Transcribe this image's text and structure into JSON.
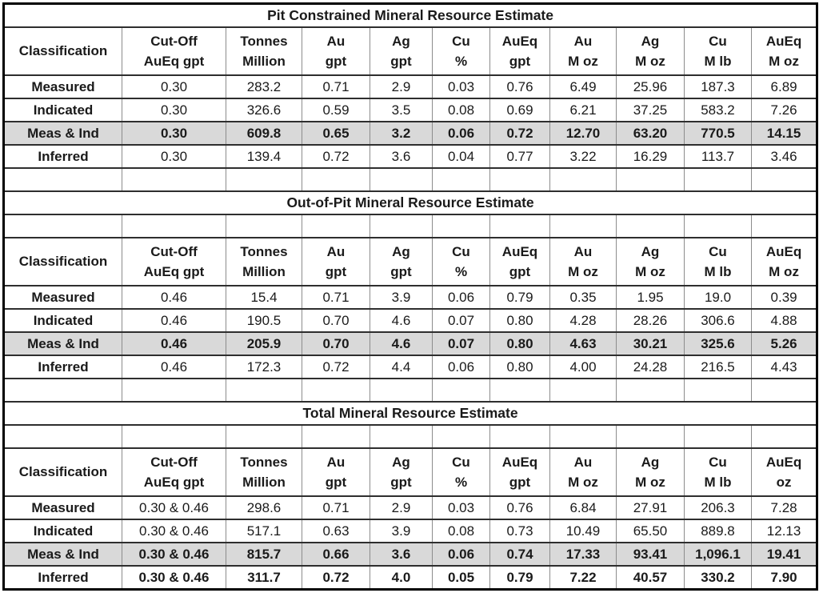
{
  "document": {
    "background": "#ffffff",
    "text_color": "#1a1a1a",
    "shaded_row_color": "#d9d9d9",
    "grid_vertical_color": "#8c8c8c",
    "grid_horizontal_color": "#2e2e2e",
    "outer_border_color": "#000000"
  },
  "tables": [
    {
      "title": "Pit Constrained Mineral Resource Estimate",
      "empty_row_after_title": false,
      "empty_row_after": true,
      "header": {
        "classification_label": "Classification",
        "columns": [
          {
            "line1": "Cut-Off",
            "line2": "AuEq gpt"
          },
          {
            "line1": "Tonnes",
            "line2": "Million"
          },
          {
            "line1": "Au",
            "line2": "gpt"
          },
          {
            "line1": "Ag",
            "line2": "gpt"
          },
          {
            "line1": "Cu",
            "line2": "%"
          },
          {
            "line1": "AuEq",
            "line2": "gpt"
          },
          {
            "line1": "Au",
            "line2": "M oz"
          },
          {
            "line1": "Ag",
            "line2": "M oz"
          },
          {
            "line1": "Cu",
            "line2": "M lb"
          },
          {
            "line1": "AuEq",
            "line2": "M oz"
          }
        ]
      },
      "rows": [
        {
          "label": "Measured",
          "values": [
            "0.30",
            "283.2",
            "0.71",
            "2.9",
            "0.03",
            "0.76",
            "6.49",
            "25.96",
            "187.3",
            "6.89"
          ],
          "bold_values": false,
          "shaded": false
        },
        {
          "label": "Indicated",
          "values": [
            "0.30",
            "326.6",
            "0.59",
            "3.5",
            "0.08",
            "0.69",
            "6.21",
            "37.25",
            "583.2",
            "7.26"
          ],
          "bold_values": false,
          "shaded": false
        },
        {
          "label": "Meas & Ind",
          "values": [
            "0.30",
            "609.8",
            "0.65",
            "3.2",
            "0.06",
            "0.72",
            "12.70",
            "63.20",
            "770.5",
            "14.15"
          ],
          "bold_values": true,
          "shaded": true
        },
        {
          "label": "Inferred",
          "values": [
            "0.30",
            "139.4",
            "0.72",
            "3.6",
            "0.04",
            "0.77",
            "3.22",
            "16.29",
            "113.7",
            "3.46"
          ],
          "bold_values": false,
          "shaded": false
        }
      ]
    },
    {
      "title": "Out-of-Pit Mineral Resource Estimate",
      "empty_row_after_title": true,
      "empty_row_after": true,
      "header": {
        "classification_label": "Classification",
        "columns": [
          {
            "line1": "Cut-Off",
            "line2": "AuEq gpt"
          },
          {
            "line1": "Tonnes",
            "line2": "Million"
          },
          {
            "line1": "Au",
            "line2": "gpt"
          },
          {
            "line1": "Ag",
            "line2": "gpt"
          },
          {
            "line1": "Cu",
            "line2": "%"
          },
          {
            "line1": "AuEq",
            "line2": "gpt"
          },
          {
            "line1": "Au",
            "line2": "M oz"
          },
          {
            "line1": "Ag",
            "line2": "M oz"
          },
          {
            "line1": "Cu",
            "line2": "M lb"
          },
          {
            "line1": "AuEq",
            "line2": "M oz"
          }
        ]
      },
      "rows": [
        {
          "label": "Measured",
          "values": [
            "0.46",
            "15.4",
            "0.71",
            "3.9",
            "0.06",
            "0.79",
            "0.35",
            "1.95",
            "19.0",
            "0.39"
          ],
          "bold_values": false,
          "shaded": false
        },
        {
          "label": "Indicated",
          "values": [
            "0.46",
            "190.5",
            "0.70",
            "4.6",
            "0.07",
            "0.80",
            "4.28",
            "28.26",
            "306.6",
            "4.88"
          ],
          "bold_values": false,
          "shaded": false
        },
        {
          "label": "Meas & Ind",
          "values": [
            "0.46",
            "205.9",
            "0.70",
            "4.6",
            "0.07",
            "0.80",
            "4.63",
            "30.21",
            "325.6",
            "5.26"
          ],
          "bold_values": true,
          "shaded": true
        },
        {
          "label": "Inferred",
          "values": [
            "0.46",
            "172.3",
            "0.72",
            "4.4",
            "0.06",
            "0.80",
            "4.00",
            "24.28",
            "216.5",
            "4.43"
          ],
          "bold_values": false,
          "shaded": false
        }
      ]
    },
    {
      "title": "Total Mineral Resource Estimate",
      "empty_row_after_title": true,
      "empty_row_after": false,
      "header": {
        "classification_label": "Classification",
        "columns": [
          {
            "line1": "Cut-Off",
            "line2": "AuEq gpt"
          },
          {
            "line1": "Tonnes",
            "line2": "Million"
          },
          {
            "line1": "Au",
            "line2": "gpt"
          },
          {
            "line1": "Ag",
            "line2": "gpt"
          },
          {
            "line1": "Cu",
            "line2": "%"
          },
          {
            "line1": "AuEq",
            "line2": "gpt"
          },
          {
            "line1": "Au",
            "line2": "M oz"
          },
          {
            "line1": "Ag",
            "line2": "M oz"
          },
          {
            "line1": "Cu",
            "line2": "M lb"
          },
          {
            "line1": "AuEq",
            "line2": "oz"
          }
        ]
      },
      "rows": [
        {
          "label": "Measured",
          "values": [
            "0.30 & 0.46",
            "298.6",
            "0.71",
            "2.9",
            "0.03",
            "0.76",
            "6.84",
            "27.91",
            "206.3",
            "7.28"
          ],
          "bold_values": false,
          "shaded": false
        },
        {
          "label": "Indicated",
          "values": [
            "0.30 & 0.46",
            "517.1",
            "0.63",
            "3.9",
            "0.08",
            "0.73",
            "10.49",
            "65.50",
            "889.8",
            "12.13"
          ],
          "bold_values": false,
          "shaded": false
        },
        {
          "label": "Meas & Ind",
          "values": [
            "0.30 & 0.46",
            "815.7",
            "0.66",
            "3.6",
            "0.06",
            "0.74",
            "17.33",
            "93.41",
            "1,096.1",
            "19.41"
          ],
          "bold_values": true,
          "shaded": true
        },
        {
          "label": "Inferred",
          "values": [
            "0.30 & 0.46",
            "311.7",
            "0.72",
            "4.0",
            "0.05",
            "0.79",
            "7.22",
            "40.57",
            "330.2",
            "7.90"
          ],
          "bold_values": true,
          "shaded": false
        }
      ]
    }
  ]
}
